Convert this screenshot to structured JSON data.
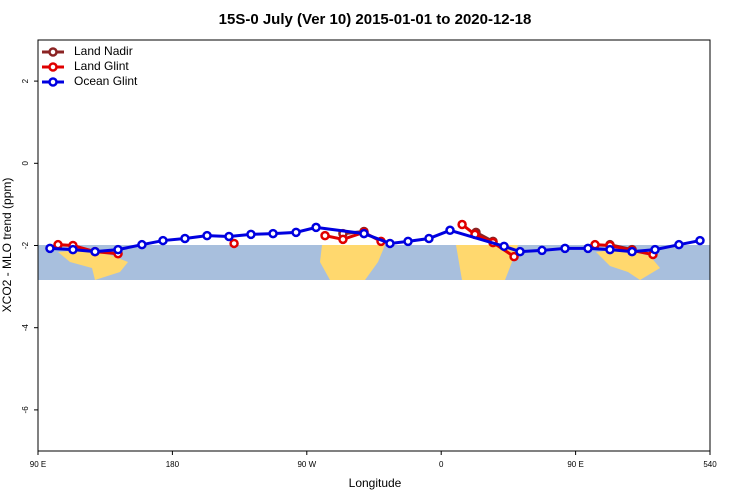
{
  "chart_data": {
    "type": "line",
    "title": "15S-0 July (Ver 10)   2015-01-01 to 2020-12-18",
    "xlabel": "Longitude",
    "ylabel": "XCO2 - MLO trend (ppm)",
    "xlim": [
      90,
      540
    ],
    "ylim": [
      -7,
      3
    ],
    "xticks": [
      {
        "value": 90,
        "label": "90 E"
      },
      180,
      {
        "value": 270,
        "label": "90 W"
      },
      {
        "value": 360,
        "label": "0"
      },
      {
        "value": 450,
        "label": "90 E"
      },
      540
    ],
    "yticks": [
      2,
      0,
      -2,
      -4,
      -6
    ],
    "legend": "top-left",
    "series": [
      {
        "name": "Land Nadir",
        "color": "#8b2323",
        "x": [
          294.2,
          308.3,
          null,
          383.3,
          394.7,
          null,
          473.0,
          487.8
        ],
        "values": [
          -1.71,
          -1.66,
          null,
          -1.68,
          -1.9,
          null,
          -1.98,
          -2.1
        ]
      },
      {
        "name": "Land Glint",
        "color": "#e00000",
        "x": [
          103.4,
          113.4,
          128.2,
          143.6,
          null,
          221.3,
          null,
          282.2,
          294.2,
          308.3,
          319.7,
          null,
          374.0,
          382.6,
          394.7,
          408.8,
          null,
          463.0,
          473.0,
          487.8,
          501.8
        ],
        "values": [
          -1.98,
          -2.0,
          -2.15,
          -2.2,
          null,
          -1.95,
          null,
          -1.76,
          -1.85,
          -1.68,
          -1.9,
          null,
          -1.49,
          -1.73,
          -1.93,
          -2.27,
          null,
          -1.98,
          -2.0,
          -2.12,
          -2.22
        ]
      },
      {
        "name": "Ocean Glint",
        "color": "#0000e0",
        "x": [
          98.0,
          113.4,
          128.2,
          143.6,
          159.6,
          173.7,
          188.4,
          203.2,
          217.9,
          232.6,
          247.4,
          262.8,
          276.2,
          308.3,
          325.7,
          337.8,
          351.8,
          365.9,
          402.1,
          412.8,
          427.5,
          442.9,
          458.3,
          473.0,
          487.8,
          503.2,
          519.2,
          533.3
        ],
        "values": [
          -2.07,
          -2.1,
          -2.15,
          -2.1,
          -1.98,
          -1.88,
          -1.83,
          -1.76,
          -1.78,
          -1.73,
          -1.71,
          -1.68,
          -1.56,
          -1.71,
          -1.95,
          -1.9,
          -1.83,
          -1.63,
          -2.02,
          -2.15,
          -2.12,
          -2.07,
          -2.07,
          -2.1,
          -2.15,
          -2.1,
          -1.98,
          -1.88
        ]
      }
    ]
  }
}
